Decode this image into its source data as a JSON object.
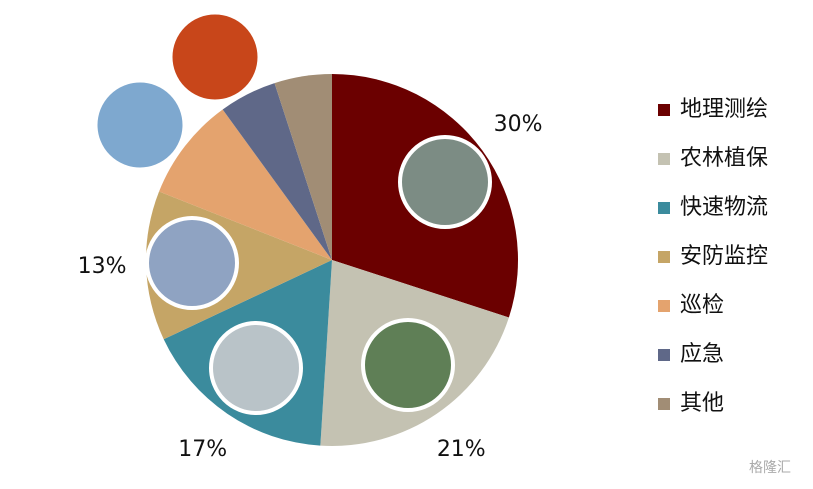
{
  "chart_data": {
    "type": "pie",
    "categories": [
      "地理测绘",
      "农林植保",
      "快速物流",
      "安防监控",
      "巡检",
      "应急",
      "其他"
    ],
    "values": [
      30,
      21,
      17,
      13,
      9,
      5,
      5
    ],
    "value_labels": [
      "30%",
      "21%",
      "17%",
      "13%",
      null,
      null,
      null
    ],
    "colors": [
      "#6b0000",
      "#c4c2b2",
      "#3b8b9d",
      "#c5a566",
      "#e4a36e",
      "#5f6888",
      "#a18d75"
    ],
    "legend": "right"
  },
  "watermark": "格隆汇"
}
